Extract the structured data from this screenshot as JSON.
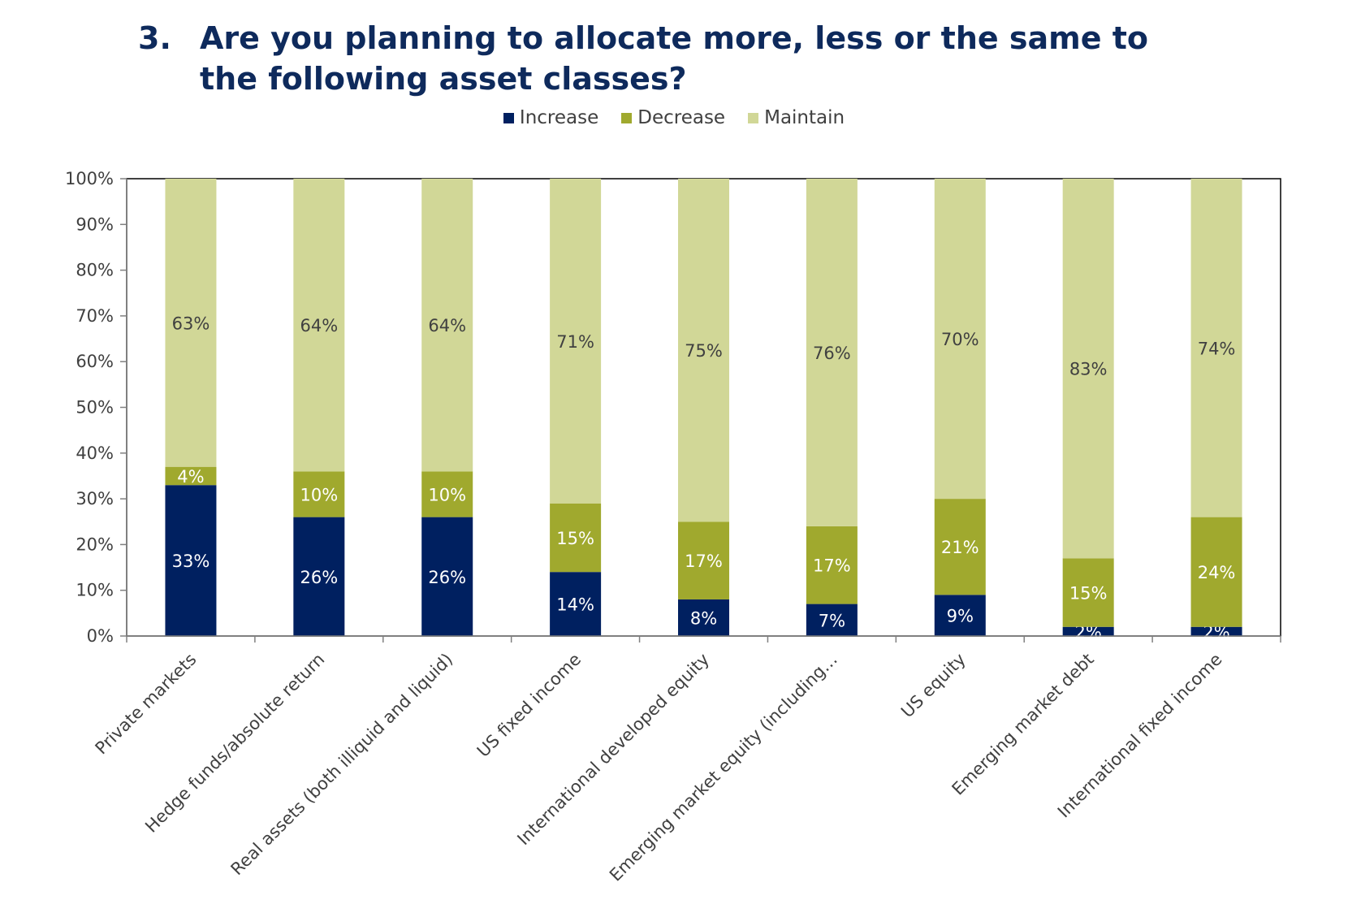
{
  "title": {
    "number": "3.",
    "text": "Are you planning to allocate more, less or the same to the following asset classes?"
  },
  "colors": {
    "title": "#0e2a5c",
    "increase": "#002060",
    "decrease": "#a0a92e",
    "maintain": "#d1d797",
    "axis": "#404040"
  },
  "legend": [
    {
      "label": "Increase",
      "color": "#002060"
    },
    {
      "label": "Decrease",
      "color": "#a0a92e"
    },
    {
      "label": "Maintain",
      "color": "#d1d797"
    }
  ],
  "chart_data": {
    "type": "bar",
    "stacked": true,
    "categories": [
      "Private markets",
      "Hedge funds/absolute return",
      "Real assets (both illiquid and liquid)",
      "US fixed income",
      "International developed equity",
      "Emerging market equity (including…",
      "US equity",
      "Emerging market debt",
      "International fixed income"
    ],
    "series": [
      {
        "name": "Increase",
        "values": [
          33,
          26,
          26,
          14,
          8,
          7,
          9,
          2,
          2
        ],
        "labels": [
          "33%",
          "26%",
          "26%",
          "14%",
          "8%",
          "7%",
          "9%",
          "2%",
          "2%"
        ]
      },
      {
        "name": "Decrease",
        "values": [
          4,
          10,
          10,
          15,
          17,
          17,
          21,
          15,
          24
        ],
        "labels": [
          "4%",
          "10%",
          "10%",
          "15%",
          "17%",
          "17%",
          "21%",
          "15%",
          "24%"
        ]
      },
      {
        "name": "Maintain",
        "values": [
          63,
          64,
          64,
          71,
          75,
          76,
          70,
          83,
          74
        ],
        "labels": [
          "63%",
          "64%",
          "64%",
          "71%",
          "75%",
          "76%",
          "70%",
          "83%",
          "74%"
        ]
      }
    ],
    "yticks": [
      "0%",
      "10%",
      "20%",
      "30%",
      "40%",
      "50%",
      "60%",
      "70%",
      "80%",
      "90%",
      "100%"
    ],
    "ylim": [
      0,
      100
    ],
    "legend_position": "top",
    "grid": false
  }
}
